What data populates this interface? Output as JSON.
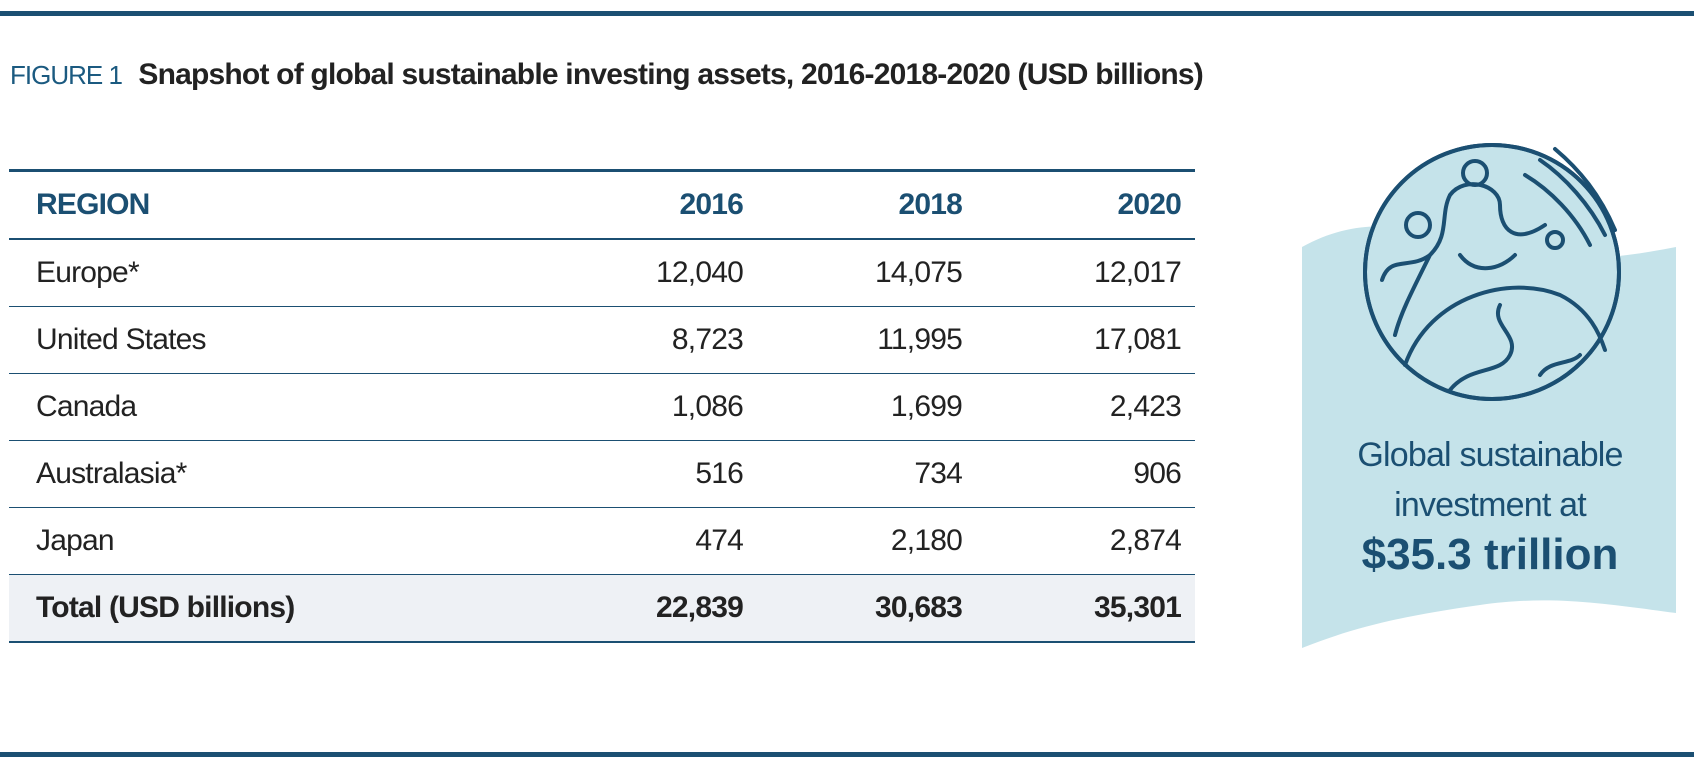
{
  "figure": {
    "label": "FIGURE 1",
    "title": "Snapshot of global sustainable investing assets, 2016-2018-2020 (USD billions)"
  },
  "table": {
    "headers": [
      "REGION",
      "2016",
      "2018",
      "2020"
    ],
    "rows": [
      [
        "Europe*",
        "12,040",
        "14,075",
        "12,017"
      ],
      [
        "United States",
        "8,723",
        "11,995",
        "17,081"
      ],
      [
        "Canada",
        "1,086",
        "1,699",
        "2,423"
      ],
      [
        "Australasia*",
        "516",
        "734",
        "906"
      ],
      [
        "Japan",
        "474",
        "2,180",
        "2,874"
      ]
    ],
    "total": [
      "Total (USD billions)",
      "22,839",
      "30,683",
      "35,301"
    ]
  },
  "callout": {
    "text": "Global sustainable investment at",
    "amount": "$35.3 trillion"
  }
}
